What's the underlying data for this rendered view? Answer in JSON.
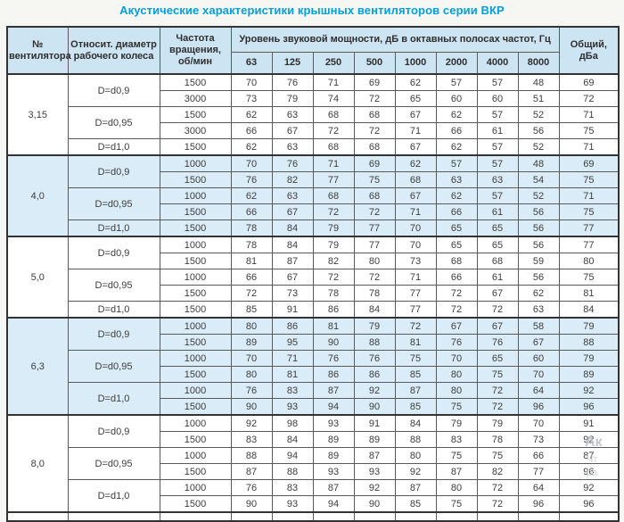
{
  "title": "Акустические характеристики крышных вентиляторов серии ВКР",
  "colors": {
    "accent": "#00a0dc",
    "header_bg": "#cde4f2",
    "shaded_bg": "#daecf7",
    "border": "#333333",
    "watermark": "#c3c7c9"
  },
  "watermark": {
    "fragments": [
      "Ак",
      "Чт",
      "ра"
    ]
  },
  "table": {
    "header": {
      "fan_number": "№ вентилятора",
      "rel_diameter": "Относит. диаметр рабочего колеса",
      "rpm": "Частота вращения, об/мин",
      "sound_power": "Уровень звуковой мощности, дБ в октавных полосах частот, Гц",
      "octave_bands": [
        "63",
        "125",
        "250",
        "500",
        "1000",
        "2000",
        "4000",
        "8000"
      ],
      "total": "Общий, дБа"
    },
    "groups": [
      {
        "fan": "3,15",
        "shaded": false,
        "diameters": [
          {
            "label": "D=d0,9",
            "rows": [
              {
                "rpm": "1500",
                "values": [
                  70,
                  76,
                  71,
                  69,
                  62,
                  57,
                  57,
                  48
                ],
                "total": 69
              },
              {
                "rpm": "3000",
                "values": [
                  73,
                  79,
                  74,
                  72,
                  65,
                  60,
                  60,
                  51
                ],
                "total": 72
              }
            ]
          },
          {
            "label": "D=d0,95",
            "rows": [
              {
                "rpm": "1500",
                "values": [
                  62,
                  63,
                  68,
                  68,
                  67,
                  62,
                  57,
                  52
                ],
                "total": 71
              },
              {
                "rpm": "3000",
                "values": [
                  66,
                  67,
                  72,
                  72,
                  71,
                  66,
                  61,
                  56
                ],
                "total": 75
              }
            ]
          },
          {
            "label": "D=d1,0",
            "rows": [
              {
                "rpm": "1500",
                "values": [
                  62,
                  63,
                  68,
                  68,
                  67,
                  62,
                  57,
                  52
                ],
                "total": 71
              }
            ]
          }
        ]
      },
      {
        "fan": "4,0",
        "shaded": true,
        "diameters": [
          {
            "label": "D=d0,9",
            "rows": [
              {
                "rpm": "1000",
                "values": [
                  70,
                  76,
                  71,
                  69,
                  62,
                  57,
                  57,
                  48
                ],
                "total": 69
              },
              {
                "rpm": "1500",
                "values": [
                  76,
                  82,
                  77,
                  75,
                  68,
                  63,
                  63,
                  54
                ],
                "total": 75
              }
            ]
          },
          {
            "label": "D=d0,95",
            "rows": [
              {
                "rpm": "1000",
                "values": [
                  62,
                  63,
                  68,
                  68,
                  67,
                  62,
                  57,
                  52
                ],
                "total": 71
              },
              {
                "rpm": "1500",
                "values": [
                  66,
                  67,
                  72,
                  72,
                  71,
                  66,
                  61,
                  56
                ],
                "total": 75
              }
            ]
          },
          {
            "label": "D=d1,0",
            "rows": [
              {
                "rpm": "1500",
                "values": [
                  78,
                  84,
                  79,
                  77,
                  70,
                  65,
                  65,
                  56
                ],
                "total": 77
              }
            ]
          }
        ]
      },
      {
        "fan": "5,0",
        "shaded": false,
        "diameters": [
          {
            "label": "D=d0,9",
            "rows": [
              {
                "rpm": "1000",
                "values": [
                  78,
                  84,
                  79,
                  77,
                  70,
                  65,
                  65,
                  56
                ],
                "total": 77
              },
              {
                "rpm": "1500",
                "values": [
                  81,
                  87,
                  82,
                  80,
                  73,
                  68,
                  68,
                  59
                ],
                "total": 80
              }
            ]
          },
          {
            "label": "D=d0,95",
            "rows": [
              {
                "rpm": "1000",
                "values": [
                  66,
                  67,
                  72,
                  72,
                  71,
                  66,
                  61,
                  56
                ],
                "total": 75
              },
              {
                "rpm": "1500",
                "values": [
                  72,
                  73,
                  78,
                  78,
                  77,
                  72,
                  67,
                  62
                ],
                "total": 81
              }
            ]
          },
          {
            "label": "D=d1,0",
            "rows": [
              {
                "rpm": "1500",
                "values": [
                  85,
                  91,
                  86,
                  84,
                  77,
                  72,
                  72,
                  63
                ],
                "total": 84
              }
            ]
          }
        ]
      },
      {
        "fan": "6,3",
        "shaded": true,
        "diameters": [
          {
            "label": "D=d0,9",
            "rows": [
              {
                "rpm": "1000",
                "values": [
                  80,
                  86,
                  81,
                  79,
                  72,
                  67,
                  67,
                  58
                ],
                "total": 79
              },
              {
                "rpm": "1500",
                "values": [
                  89,
                  95,
                  90,
                  88,
                  81,
                  76,
                  76,
                  67
                ],
                "total": 88
              }
            ]
          },
          {
            "label": "D=d0,95",
            "rows": [
              {
                "rpm": "1000",
                "values": [
                  70,
                  71,
                  76,
                  76,
                  75,
                  70,
                  65,
                  60
                ],
                "total": 79
              },
              {
                "rpm": "1500",
                "values": [
                  80,
                  81,
                  86,
                  86,
                  85,
                  80,
                  75,
                  70
                ],
                "total": 89
              }
            ]
          },
          {
            "label": "D=d1,0",
            "rows": [
              {
                "rpm": "1000",
                "values": [
                  76,
                  83,
                  87,
                  92,
                  87,
                  80,
                  72,
                  64
                ],
                "total": 92
              },
              {
                "rpm": "1500",
                "values": [
                  90,
                  93,
                  94,
                  90,
                  85,
                  75,
                  72,
                  96
                ],
                "total": 96
              }
            ]
          }
        ]
      },
      {
        "fan": "8,0",
        "shaded": false,
        "diameters": [
          {
            "label": "D=d0,9",
            "rows": [
              {
                "rpm": "1000",
                "values": [
                  92,
                  98,
                  93,
                  91,
                  84,
                  79,
                  79,
                  70
                ],
                "total": 91
              },
              {
                "rpm": "1500",
                "values": [
                  83,
                  84,
                  89,
                  89,
                  88,
                  83,
                  78,
                  73
                ],
                "total": 92
              }
            ]
          },
          {
            "label": "D=d0,95",
            "rows": [
              {
                "rpm": "1000",
                "values": [
                  88,
                  94,
                  89,
                  87,
                  80,
                  75,
                  75,
                  66
                ],
                "total": 87
              },
              {
                "rpm": "1500",
                "values": [
                  87,
                  88,
                  93,
                  93,
                  92,
                  87,
                  82,
                  77
                ],
                "total": 96
              }
            ]
          },
          {
            "label": "D=d1,0",
            "rows": [
              {
                "rpm": "1000",
                "values": [
                  76,
                  83,
                  87,
                  92,
                  87,
                  80,
                  72,
                  64
                ],
                "total": 92
              },
              {
                "rpm": "1500",
                "values": [
                  90,
                  93,
                  94,
                  90,
                  85,
                  75,
                  72,
                  96
                ],
                "total": 96
              }
            ]
          }
        ]
      }
    ]
  }
}
